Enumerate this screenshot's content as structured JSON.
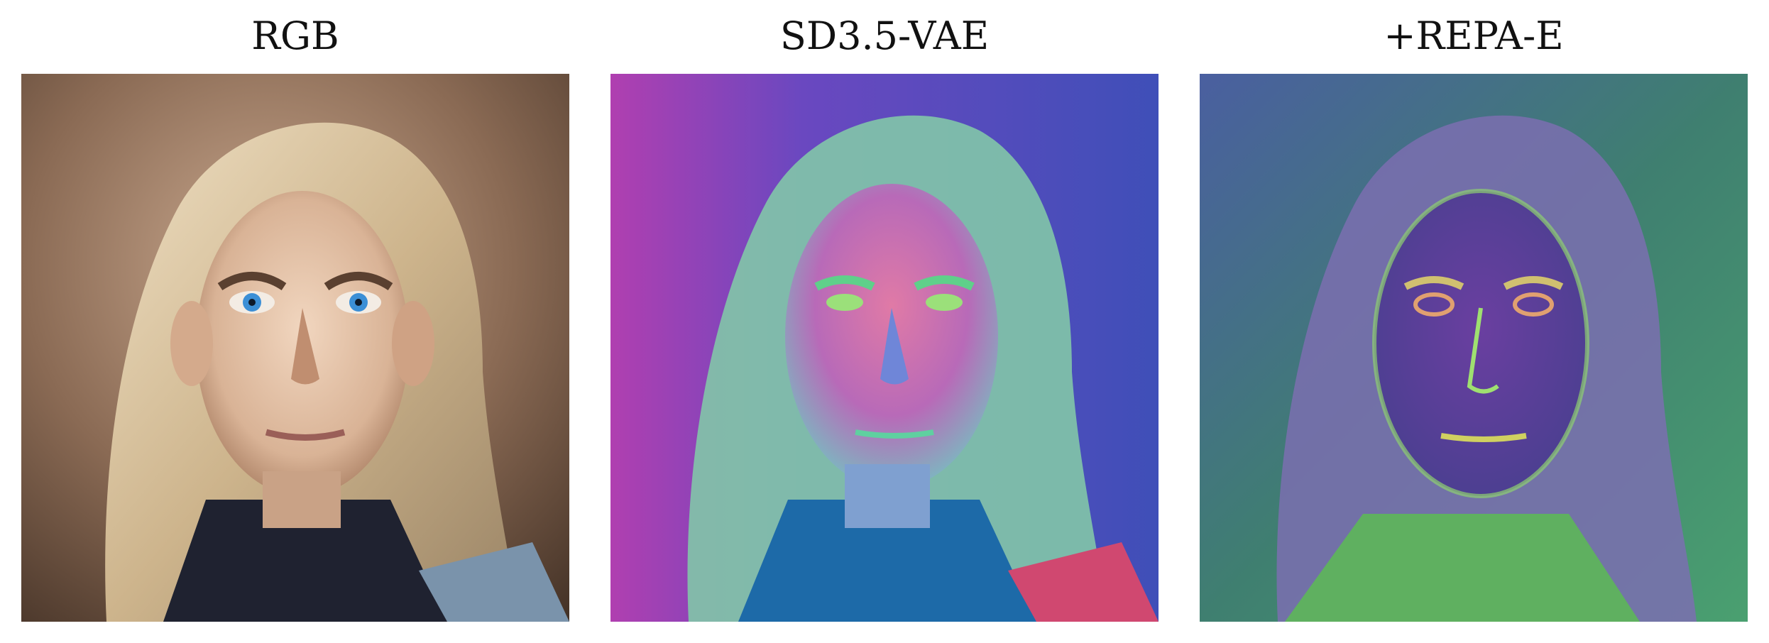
{
  "figure": {
    "panels": [
      {
        "title": "RGB",
        "content": "original photo of a man with long blond hair and blue eyes"
      },
      {
        "title": "SD3.5-VAE",
        "content": "latent PCA visualization, pink/green/blue hues"
      },
      {
        "title": "+REPA-E",
        "content": "latent PCA visualization, purple/green hues with sharper edges"
      }
    ]
  },
  "colors": {
    "rgb_background": "#6b5240",
    "rgb_hair": "#d9c4a0",
    "rgb_skin": "#e2bfa3",
    "rgb_eyes": "#3b8fd6",
    "sd35_background": "#4a4fc4",
    "sd35_face": "#d96aa6",
    "sd35_hair": "#7fd0a8",
    "repae_background": "#3f7f70",
    "repae_face": "#5a3f9a",
    "repae_hair": "#6fbf6a"
  }
}
